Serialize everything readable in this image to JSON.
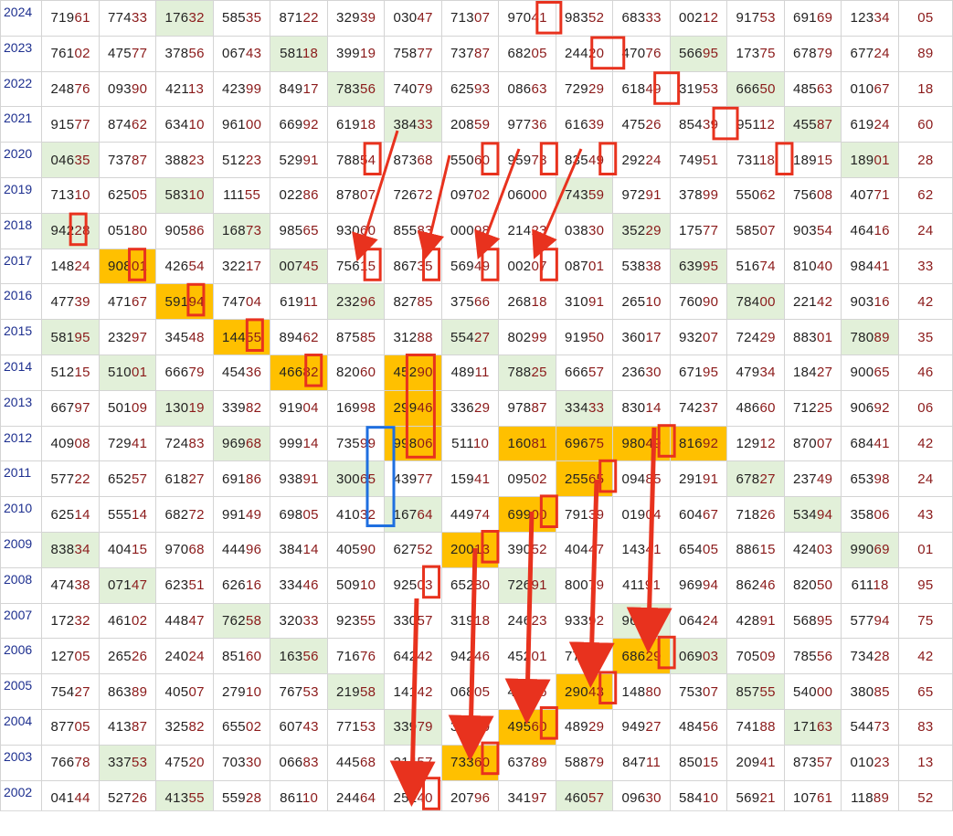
{
  "years": [
    "2024",
    "2023",
    "2022",
    "2021",
    "2020",
    "2019",
    "2018",
    "2017",
    "2016",
    "2015",
    "2014",
    "2013",
    "2012",
    "2011",
    "2010",
    "2009",
    "2008",
    "2007",
    "2006",
    "2005",
    "2004",
    "2003",
    "2002"
  ],
  "rows": [
    [
      "71961",
      "77433",
      "17632",
      "58535",
      "87122",
      "32939",
      "03047",
      "71307",
      "97041",
      "98352",
      "68333",
      "00212",
      "91753",
      "69169",
      "12334",
      "05"
    ],
    [
      "76102",
      "47577",
      "37856",
      "06743",
      "58118",
      "39919",
      "75877",
      "73787",
      "68205",
      "24420",
      "47076",
      "56695",
      "17375",
      "67879",
      "67724",
      "89"
    ],
    [
      "24876",
      "09390",
      "42113",
      "42399",
      "84917",
      "78356",
      "74079",
      "62593",
      "08663",
      "72929",
      "61849",
      "31953",
      "66650",
      "48563",
      "01067",
      "18"
    ],
    [
      "91577",
      "87462",
      "63410",
      "96100",
      "66992",
      "61918",
      "38433",
      "20859",
      "97736",
      "61639",
      "47526",
      "85439",
      "95112",
      "45587",
      "61924",
      "60"
    ],
    [
      "04635",
      "73787",
      "38823",
      "51223",
      "52991",
      "78854",
      "87368",
      "55060",
      "95973",
      "83549",
      "29224",
      "74951",
      "73118",
      "18915",
      "18901",
      "28"
    ],
    [
      "71310",
      "62505",
      "58310",
      "11155",
      "02286",
      "87807",
      "72672",
      "09702",
      "06000",
      "74359",
      "97291",
      "37899",
      "55062",
      "75608",
      "40771",
      "62"
    ],
    [
      "94228",
      "05180",
      "90586",
      "16873",
      "98565",
      "93060",
      "85583",
      "00098",
      "21423",
      "03830",
      "35229",
      "17577",
      "58507",
      "90354",
      "46416",
      "24"
    ],
    [
      "14824",
      "90801",
      "42654",
      "32217",
      "00745",
      "75615",
      "86735",
      "56949",
      "00207",
      "08701",
      "53838",
      "63995",
      "51674",
      "81040",
      "98441",
      "33"
    ],
    [
      "47739",
      "47167",
      "59194",
      "74704",
      "61911",
      "23296",
      "82785",
      "37566",
      "26818",
      "31091",
      "26510",
      "76090",
      "78400",
      "22142",
      "90316",
      "42"
    ],
    [
      "58195",
      "23297",
      "34548",
      "14455",
      "89462",
      "87585",
      "31288",
      "55427",
      "80299",
      "91950",
      "36017",
      "93207",
      "72429",
      "88301",
      "78089",
      "35"
    ],
    [
      "51215",
      "51001",
      "66679",
      "45436",
      "46682",
      "82060",
      "45290",
      "48911",
      "78825",
      "66657",
      "23630",
      "67195",
      "47934",
      "18427",
      "90065",
      "46"
    ],
    [
      "66797",
      "50109",
      "13019",
      "33982",
      "91904",
      "16998",
      "29946",
      "33629",
      "97887",
      "33433",
      "83014",
      "74237",
      "48660",
      "71225",
      "90692",
      "06"
    ],
    [
      "40908",
      "72941",
      "72483",
      "96968",
      "99914",
      "73599",
      "99806",
      "51110",
      "16081",
      "69675",
      "98049",
      "81692",
      "12912",
      "87007",
      "68441",
      "42"
    ],
    [
      "57722",
      "65257",
      "61827",
      "69186",
      "93891",
      "30065",
      "43977",
      "15941",
      "09502",
      "25565",
      "09485",
      "29191",
      "67827",
      "23749",
      "65398",
      "24"
    ],
    [
      "62514",
      "55514",
      "68272",
      "99149",
      "69805",
      "41032",
      "16764",
      "44974",
      "69900",
      "79139",
      "01904",
      "60467",
      "71826",
      "53494",
      "35806",
      "43"
    ],
    [
      "83834",
      "40415",
      "97068",
      "44496",
      "38414",
      "40590",
      "62752",
      "20013",
      "39052",
      "40447",
      "14341",
      "65405",
      "88615",
      "42403",
      "99069",
      "01"
    ],
    [
      "47438",
      "07147",
      "62351",
      "62616",
      "33446",
      "50910",
      "92503",
      "65280",
      "72691",
      "80079",
      "41191",
      "96994",
      "86246",
      "82050",
      "61118",
      "95"
    ],
    [
      "17232",
      "46102",
      "44847",
      "76258",
      "32033",
      "92355",
      "33057",
      "31918",
      "24623",
      "93392",
      "96700",
      "06424",
      "42891",
      "56895",
      "57794",
      "75"
    ],
    [
      "12705",
      "26526",
      "24024",
      "85160",
      "16356",
      "71676",
      "64242",
      "94246",
      "45201",
      "77410",
      "68629",
      "06903",
      "70509",
      "78556",
      "73428",
      "42"
    ],
    [
      "75427",
      "86389",
      "40507",
      "27910",
      "76753",
      "21958",
      "14142",
      "06805",
      "44376",
      "29043",
      "14880",
      "75307",
      "85755",
      "54000",
      "38085",
      "65"
    ],
    [
      "87705",
      "41387",
      "32582",
      "65502",
      "60743",
      "77153",
      "33979",
      "33760",
      "49560",
      "48929",
      "94927",
      "48456",
      "74188",
      "17163",
      "54473",
      "83"
    ],
    [
      "76678",
      "33753",
      "47520",
      "70330",
      "06683",
      "44568",
      "21457",
      "73360",
      "63789",
      "58879",
      "84711",
      "85015",
      "20941",
      "87357",
      "01023",
      "13"
    ],
    [
      "04144",
      "52726",
      "41355",
      "55928",
      "86110",
      "24464",
      "25240",
      "20796",
      "34197",
      "46057",
      "09630",
      "58410",
      "56921",
      "10761",
      "11889",
      "52"
    ]
  ],
  "green_cells": [
    "0-2",
    "1-4",
    "1-11",
    "2-5",
    "2-12",
    "3-6",
    "3-13",
    "4-0",
    "4-14",
    "5-2",
    "5-9",
    "6-0",
    "6-3",
    "6-10",
    "7-4",
    "7-11",
    "8-5",
    "8-12",
    "9-0",
    "9-7",
    "9-14",
    "10-1",
    "10-8",
    "11-2",
    "11-9",
    "12-3",
    "12-10",
    "13-5",
    "13-12",
    "14-6",
    "14-13",
    "15-0",
    "15-7",
    "15-14",
    "16-1",
    "16-8",
    "17-3",
    "17-10",
    "18-4",
    "18-11",
    "19-5",
    "19-12",
    "20-6",
    "20-13",
    "21-1",
    "21-7",
    "22-2",
    "22-9"
  ],
  "yellow_cells": [
    "7-1",
    "8-2",
    "9-3",
    "10-4",
    "10-6",
    "11-6",
    "12-6",
    "12-8",
    "12-9",
    "12-10",
    "12-11",
    "13-9",
    "14-8",
    "15-7",
    "18-10",
    "19-9",
    "20-8",
    "21-7"
  ],
  "colors": {
    "green_cell": "#e2f0d9",
    "yellow_cell": "#ffc000",
    "year_label": "#1d2f8f",
    "digit_head": "#222222",
    "digit_tail": "#8b1a1a",
    "marker_red": "#e8321e",
    "marker_blue": "#1f6fe0"
  },
  "markers": {
    "red_boxes": [
      {
        "row": 0,
        "col": 8,
        "digits": "41"
      },
      {
        "row": 1,
        "col": 9,
        "digits": "420"
      },
      {
        "row": 2,
        "col": 10,
        "digits": "49"
      },
      {
        "row": 3,
        "col": 11,
        "digits": "43"
      },
      {
        "row": 4,
        "col": 5,
        "digits": "5"
      },
      {
        "row": 4,
        "col": 7,
        "digits": "5"
      },
      {
        "row": 4,
        "col": 8,
        "digits": "5"
      },
      {
        "row": 4,
        "col": 9,
        "digits": "5"
      },
      {
        "row": 4,
        "col": 12,
        "digits": "1"
      },
      {
        "row": 6,
        "col": 0,
        "digits": "2"
      },
      {
        "row": 7,
        "col": 1,
        "digits": "0"
      },
      {
        "row": 7,
        "col": 5,
        "digits": "6"
      },
      {
        "row": 7,
        "col": 6,
        "digits": "7"
      },
      {
        "row": 7,
        "col": 7,
        "digits": "9"
      },
      {
        "row": 7,
        "col": 8,
        "digits": "2"
      },
      {
        "row": 8,
        "col": 2,
        "digits": "9"
      },
      {
        "row": 9,
        "col": 3,
        "digits": "5"
      },
      {
        "row": 10,
        "col": 4,
        "digits": "8"
      },
      {
        "row": 12,
        "col": 10,
        "digits": "0"
      },
      {
        "row": 13,
        "col": 9,
        "digits": "5"
      },
      {
        "row": 14,
        "col": 8,
        "digits": "9"
      },
      {
        "row": 15,
        "col": 7,
        "digits": "0"
      },
      {
        "row": 16,
        "col": 6,
        "digits": "2"
      },
      {
        "row": 18,
        "col": 10,
        "digits": "8"
      },
      {
        "row": 19,
        "col": 9,
        "digits": "9"
      },
      {
        "row": 20,
        "col": 8,
        "digits": "5"
      },
      {
        "row": 21,
        "col": 7,
        "digits": "3"
      },
      {
        "row": 22,
        "col": 6,
        "digits": "2"
      }
    ],
    "red_tall_box": {
      "col": 6,
      "rows": [
        10,
        12
      ]
    },
    "blue_box": {
      "col": 5,
      "rows": [
        12,
        14
      ]
    }
  }
}
